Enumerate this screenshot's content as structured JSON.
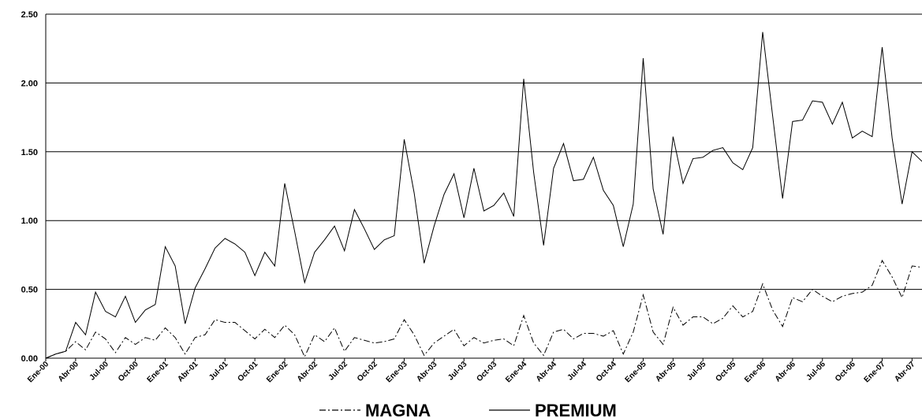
{
  "chart_data": {
    "type": "line",
    "categories": [
      "Ene-00",
      null,
      null,
      "Abr-00",
      null,
      null,
      "Jul-00",
      null,
      null,
      "Oct-00",
      null,
      null,
      "Ene-01",
      null,
      null,
      "Abr-01",
      null,
      null,
      "Jul-01",
      null,
      null,
      "Oct-01",
      null,
      null,
      "Ene-02",
      null,
      null,
      "Abr-02",
      null,
      null,
      "Jul-02",
      null,
      null,
      "Oct-02",
      null,
      null,
      "Ene-03",
      null,
      null,
      "Abr-03",
      null,
      null,
      "Jul-03",
      null,
      null,
      "Oct-03",
      null,
      null,
      "Ene-04",
      null,
      null,
      "Abr-04",
      null,
      null,
      "Jul-04",
      null,
      null,
      "Oct-04",
      null,
      null,
      "Ene-05",
      null,
      null,
      "Abr-05",
      null,
      null,
      "Jul-05",
      null,
      null,
      "Oct-05",
      null,
      null,
      "Ene-06",
      null,
      null,
      "Abr-06",
      null,
      null,
      "Jul-06",
      null,
      null,
      "Oct-06",
      null,
      null,
      "Ene-07",
      null,
      null,
      "Abr-07",
      null
    ],
    "series": [
      {
        "name": "MAGNA",
        "color": "#000000",
        "dash": "dashdot",
        "values": [
          0.0,
          0.03,
          0.05,
          0.12,
          0.06,
          0.19,
          0.14,
          0.04,
          0.15,
          0.1,
          0.15,
          0.13,
          0.22,
          0.15,
          0.03,
          0.15,
          0.17,
          0.28,
          0.26,
          0.26,
          0.2,
          0.14,
          0.21,
          0.15,
          0.24,
          0.17,
          0.01,
          0.17,
          0.12,
          0.22,
          0.05,
          0.15,
          0.13,
          0.11,
          0.12,
          0.14,
          0.28,
          0.17,
          0.02,
          0.11,
          0.16,
          0.21,
          0.09,
          0.15,
          0.11,
          0.13,
          0.14,
          0.09,
          0.31,
          0.11,
          0.02,
          0.19,
          0.21,
          0.14,
          0.18,
          0.18,
          0.16,
          0.2,
          0.03,
          0.19,
          0.46,
          0.19,
          0.1,
          0.37,
          0.24,
          0.3,
          0.3,
          0.25,
          0.29,
          0.38,
          0.3,
          0.34,
          0.54,
          0.35,
          0.23,
          0.44,
          0.41,
          0.5,
          0.45,
          0.41,
          0.45,
          0.47,
          0.48,
          0.53,
          0.71,
          0.59,
          0.44,
          0.67,
          0.66
        ]
      },
      {
        "name": "PREMIUM",
        "color": "#000000",
        "dash": "solid",
        "values": [
          0.0,
          0.03,
          0.05,
          0.26,
          0.17,
          0.48,
          0.34,
          0.3,
          0.45,
          0.26,
          0.35,
          0.39,
          0.81,
          0.67,
          0.25,
          0.51,
          0.65,
          0.8,
          0.87,
          0.83,
          0.77,
          0.6,
          0.77,
          0.67,
          1.27,
          0.92,
          0.55,
          0.77,
          0.86,
          0.96,
          0.78,
          1.08,
          0.94,
          0.79,
          0.86,
          0.89,
          1.59,
          1.2,
          0.69,
          0.96,
          1.19,
          1.34,
          1.02,
          1.38,
          1.07,
          1.11,
          1.2,
          1.03,
          2.03,
          1.35,
          0.82,
          1.38,
          1.56,
          1.29,
          1.3,
          1.46,
          1.22,
          1.11,
          0.81,
          1.12,
          2.18,
          1.23,
          0.9,
          1.61,
          1.27,
          1.45,
          1.46,
          1.51,
          1.53,
          1.42,
          1.37,
          1.53,
          2.37,
          1.76,
          1.16,
          1.72,
          1.73,
          1.87,
          1.86,
          1.7,
          1.86,
          1.6,
          1.65,
          1.61,
          2.26,
          1.6,
          1.12,
          1.5,
          1.43
        ]
      }
    ],
    "ylim": [
      0,
      2.5
    ],
    "yticks": [
      {
        "value": 0,
        "label": "0.00"
      },
      {
        "value": 0.5,
        "label": "0.50"
      },
      {
        "value": 1,
        "label": "1.00"
      },
      {
        "value": 1.5,
        "label": "1.50"
      },
      {
        "value": 2,
        "label": "2.00"
      },
      {
        "value": 2.5,
        "label": "2.50"
      }
    ],
    "grid": true,
    "legend": "bottom"
  }
}
